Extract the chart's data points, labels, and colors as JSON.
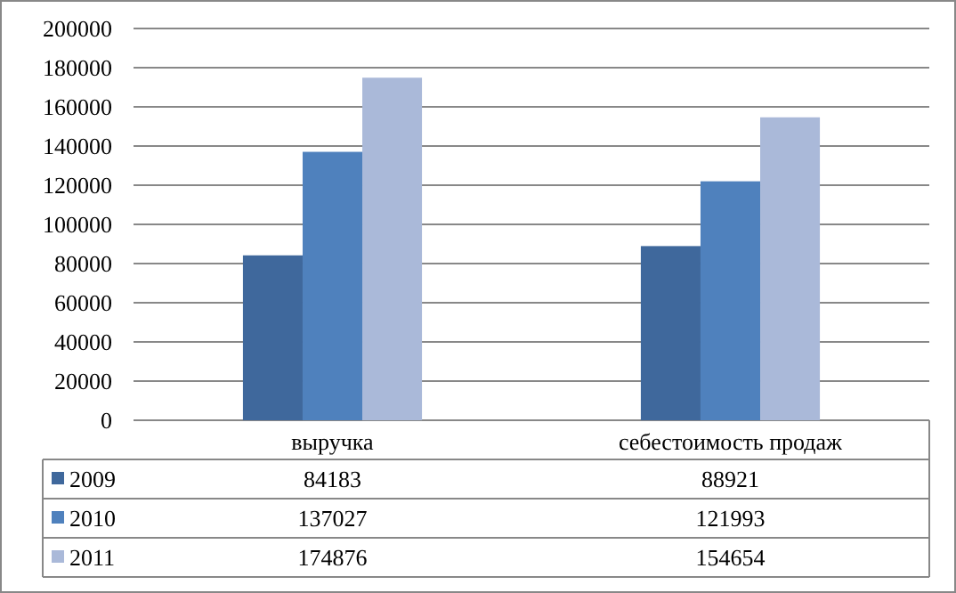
{
  "chart_data": {
    "type": "bar",
    "categories": [
      "выручка",
      "себестоимость продаж"
    ],
    "series": [
      {
        "name": "2009",
        "color": "#3f689c",
        "values": [
          84183,
          88921
        ]
      },
      {
        "name": "2010",
        "color": "#4f81bd",
        "values": [
          137027,
          121993
        ]
      },
      {
        "name": "2011",
        "color": "#aab9d9",
        "values": [
          174876,
          154654
        ]
      }
    ],
    "ylim": [
      0,
      200000
    ],
    "yticks": [
      0,
      20000,
      40000,
      60000,
      80000,
      100000,
      120000,
      140000,
      160000,
      180000,
      200000
    ],
    "grid": "y",
    "legend": "bottom",
    "data_labels": true
  }
}
